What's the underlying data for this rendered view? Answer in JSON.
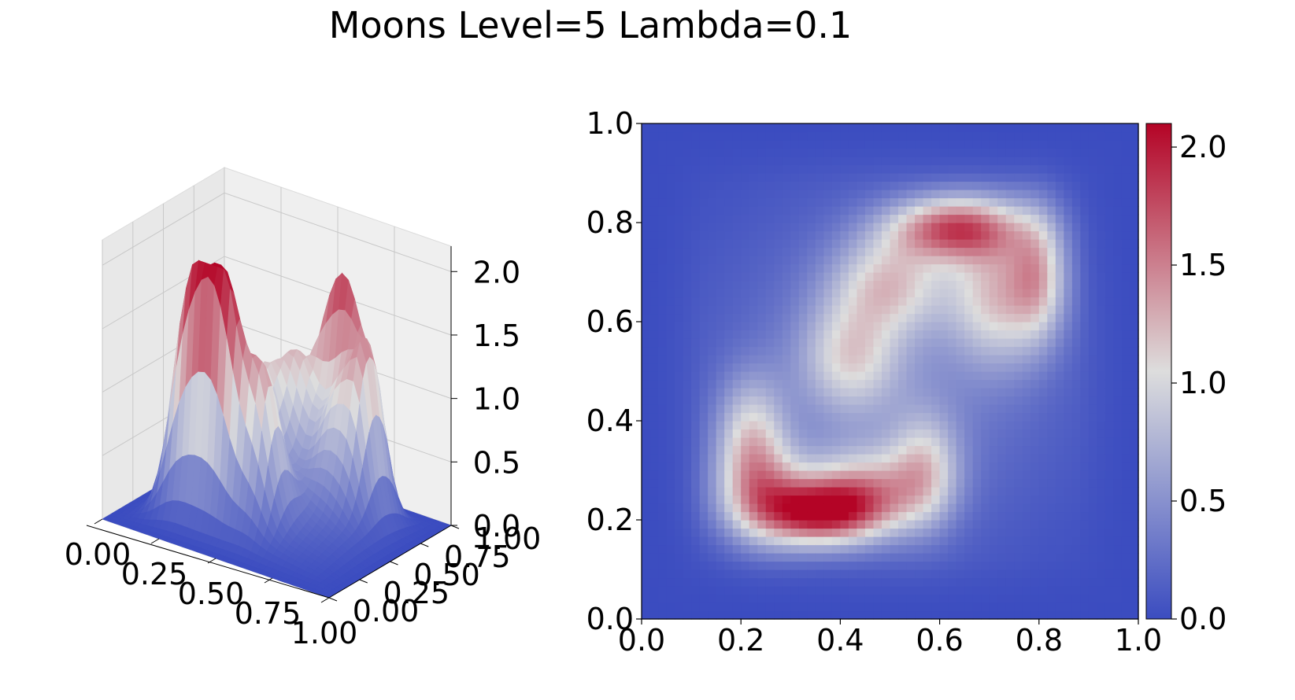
{
  "figure": {
    "title": "Moons Level=5 Lambda=0.1"
  },
  "colormap": {
    "name": "coolwarm",
    "low": "#3b4cc0",
    "mid": "#dddddd",
    "high": "#b40426"
  },
  "chart_data": [
    {
      "type": "surface",
      "title": "",
      "xlabel": "",
      "ylabel": "",
      "zlabel": "",
      "xlim": [
        0,
        1
      ],
      "ylim": [
        0,
        1
      ],
      "zlim": [
        0,
        2.1
      ],
      "x_ticks": [
        "0.00",
        "0.25",
        "0.50",
        "0.75",
        "1.00"
      ],
      "y_ticks": [
        "0.00",
        "0.25",
        "0.50",
        "0.75",
        "1.00"
      ],
      "z_ticks": [
        "0.0",
        "0.5",
        "1.0",
        "1.5",
        "2.0"
      ],
      "grid": true,
      "peak_value": 2.1
    },
    {
      "type": "heatmap",
      "title": "",
      "xlabel": "",
      "ylabel": "",
      "xlim": [
        0,
        1
      ],
      "ylim": [
        0,
        1
      ],
      "x_ticks": [
        "0.0",
        "0.2",
        "0.4",
        "0.6",
        "0.8",
        "1.0"
      ],
      "y_ticks": [
        "0.0",
        "0.2",
        "0.4",
        "0.6",
        "0.8",
        "1.0"
      ],
      "value_range": [
        0,
        2.1
      ],
      "colorbar_ticks": [
        "0.0",
        "0.5",
        "1.0",
        "1.5",
        "2.0"
      ],
      "hotspots": [
        {
          "x": 0.38,
          "y": 0.21,
          "value": 2.1
        },
        {
          "x": 0.62,
          "y": 0.79,
          "value": 1.75
        }
      ]
    }
  ]
}
